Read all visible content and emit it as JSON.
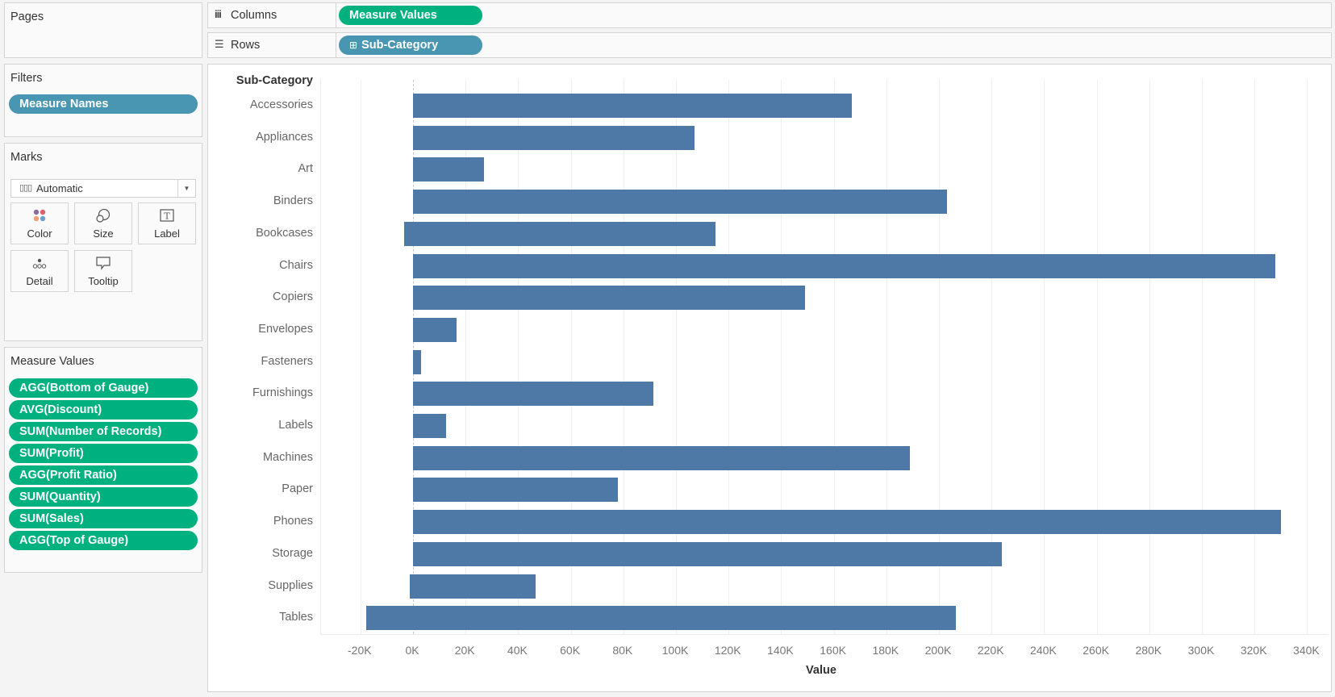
{
  "left_panel": {
    "pages": {
      "title": "Pages"
    },
    "filters": {
      "title": "Filters",
      "pills": [
        "Measure Names"
      ]
    },
    "marks": {
      "title": "Marks",
      "mark_type": "Automatic",
      "buttons": [
        {
          "label": "Color",
          "icon": "color-icon"
        },
        {
          "label": "Size",
          "icon": "size-icon"
        },
        {
          "label": "Label",
          "icon": "label-icon"
        },
        {
          "label": "Detail",
          "icon": "detail-icon"
        },
        {
          "label": "Tooltip",
          "icon": "tooltip-icon"
        }
      ]
    },
    "measure_values": {
      "title": "Measure Values",
      "pills": [
        "AGG(Bottom of Gauge)",
        "AVG(Discount)",
        "SUM(Number of Records)",
        "SUM(Profit)",
        "AGG(Profit Ratio)",
        "SUM(Quantity)",
        "SUM(Sales)",
        "AGG(Top of Gauge)"
      ]
    }
  },
  "shelves": {
    "columns": {
      "label": "Columns",
      "icon": "columns-icon",
      "pill": "Measure Values"
    },
    "rows": {
      "label": "Rows",
      "icon": "rows-icon",
      "pill": "Sub-Category",
      "pill_icon": "⊞"
    }
  },
  "colors": {
    "bar": "#4e79a7",
    "measure_pill": "#00b180",
    "dimension_pill": "#4996b2"
  },
  "chart_data": {
    "type": "bar",
    "orientation": "horizontal",
    "title": "",
    "row_header": "Sub-Category",
    "xlabel": "Value",
    "ylabel": "Sub-Category",
    "categories": [
      "Accessories",
      "Appliances",
      "Art",
      "Binders",
      "Bookcases",
      "Chairs",
      "Copiers",
      "Envelopes",
      "Fasteners",
      "Furnishings",
      "Labels",
      "Machines",
      "Paper",
      "Phones",
      "Storage",
      "Supplies",
      "Tables"
    ],
    "bars": [
      {
        "start": 0,
        "end": 167
      },
      {
        "start": 0,
        "end": 107
      },
      {
        "start": 0,
        "end": 27
      },
      {
        "start": 0,
        "end": 203
      },
      {
        "start": -3.5,
        "end": 115
      },
      {
        "start": 0,
        "end": 328
      },
      {
        "start": 0,
        "end": 149
      },
      {
        "start": 0,
        "end": 16.5
      },
      {
        "start": 0,
        "end": 3
      },
      {
        "start": 0,
        "end": 91.5
      },
      {
        "start": 0,
        "end": 12.5
      },
      {
        "start": 0,
        "end": 189
      },
      {
        "start": 0,
        "end": 78
      },
      {
        "start": 0,
        "end": 330
      },
      {
        "start": 0,
        "end": 224
      },
      {
        "start": -1.2,
        "end": 46.6
      },
      {
        "start": -17.7,
        "end": 206.5
      }
    ],
    "units": "thousands",
    "xlim": [
      -35,
      350
    ],
    "xticks": [
      -20,
      0,
      20,
      40,
      60,
      80,
      100,
      120,
      140,
      160,
      180,
      200,
      220,
      240,
      260,
      280,
      300,
      320,
      340
    ],
    "xtick_labels": [
      "-20K",
      "0K",
      "20K",
      "40K",
      "60K",
      "80K",
      "100K",
      "120K",
      "140K",
      "160K",
      "180K",
      "200K",
      "220K",
      "240K",
      "260K",
      "280K",
      "300K",
      "320K",
      "340K"
    ],
    "grid": true,
    "legend": null
  }
}
